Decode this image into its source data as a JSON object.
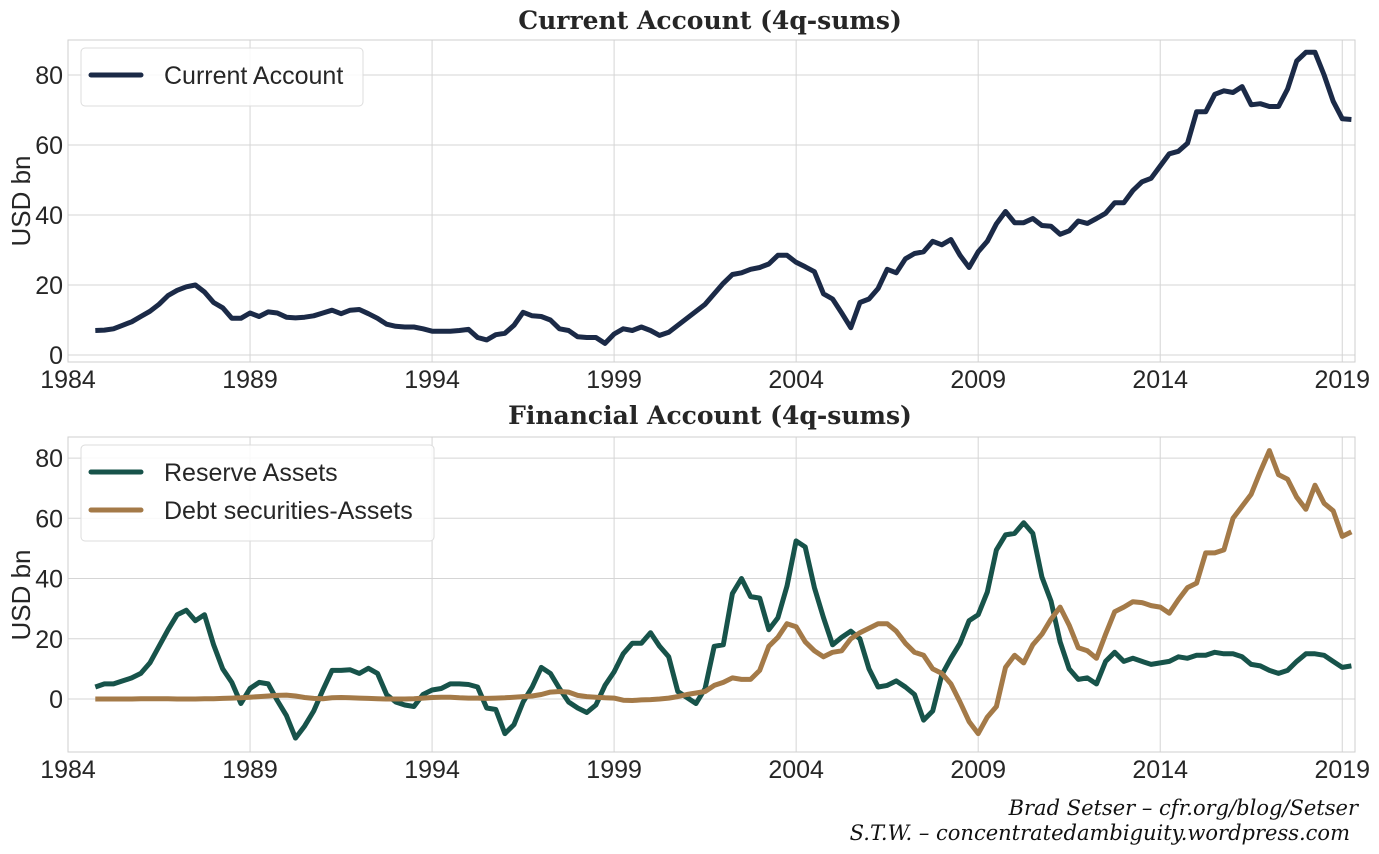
{
  "credits": [
    "Brad Setser – cfr.org/blog/Setser",
    "S.T.W. – concentratedambiguity.wordpress.com"
  ],
  "chart_data": [
    {
      "type": "line",
      "title": "Current Account (4q-sums)",
      "ylabel": "USD bn",
      "xlabel": "",
      "xlim": [
        1984,
        2019.35
      ],
      "ylim": [
        -2,
        90
      ],
      "xticks": [
        1984,
        1989,
        1994,
        1999,
        2004,
        2009,
        2014,
        2019
      ],
      "yticks": [
        0,
        20,
        40,
        60,
        80
      ],
      "grid": true,
      "legend": "top-left",
      "x": [
        1984.75,
        1985,
        1985.25,
        1985.5,
        1985.75,
        1986,
        1986.25,
        1986.5,
        1986.75,
        1987,
        1987.25,
        1987.5,
        1987.75,
        1988,
        1988.25,
        1988.5,
        1988.75,
        1989,
        1989.25,
        1989.5,
        1989.75,
        1990,
        1990.25,
        1990.5,
        1990.75,
        1991,
        1991.25,
        1991.5,
        1991.75,
        1992,
        1992.25,
        1992.5,
        1992.75,
        1993,
        1993.25,
        1993.5,
        1993.75,
        1994,
        1994.25,
        1994.5,
        1994.75,
        1995,
        1995.25,
        1995.5,
        1995.75,
        1996,
        1996.25,
        1996.5,
        1996.75,
        1997,
        1997.25,
        1997.5,
        1997.75,
        1998,
        1998.25,
        1998.5,
        1998.75,
        1999,
        1999.25,
        1999.5,
        1999.75,
        2000,
        2000.25,
        2000.5,
        2000.75,
        2001,
        2001.25,
        2001.5,
        2001.75,
        2002,
        2002.25,
        2002.5,
        2002.75,
        2003,
        2003.25,
        2003.5,
        2003.75,
        2004,
        2004.25,
        2004.5,
        2004.75,
        2005,
        2005.25,
        2005.5,
        2005.75,
        2006,
        2006.25,
        2006.5,
        2006.75,
        2007,
        2007.25,
        2007.5,
        2007.75,
        2008,
        2008.25,
        2008.5,
        2008.75,
        2009,
        2009.25,
        2009.5,
        2009.75,
        2010,
        2010.25,
        2010.5,
        2010.75,
        2011,
        2011.25,
        2011.5,
        2011.75,
        2012,
        2012.25,
        2012.5,
        2012.75,
        2013,
        2013.25,
        2013.5,
        2013.75,
        2014,
        2014.25,
        2014.5,
        2014.75,
        2015,
        2015.25,
        2015.5,
        2015.75,
        2016,
        2016.25,
        2016.5,
        2016.75,
        2017,
        2017.25,
        2017.5,
        2017.75,
        2018,
        2018.25,
        2018.5,
        2018.75,
        2019,
        2019.25
      ],
      "series": [
        {
          "name": "Current Account",
          "color": "#1b2a47",
          "values": [
            7,
            7.1,
            7.5,
            8.5,
            9.5,
            11,
            12.5,
            14.5,
            17,
            18.5,
            19.5,
            20,
            18,
            15,
            13.5,
            10.5,
            10.5,
            12,
            11,
            12.3,
            12,
            10.8,
            10.6,
            10.8,
            11.2,
            12,
            12.8,
            11.8,
            12.8,
            13,
            11.8,
            10.5,
            8.8,
            8.2,
            8,
            8,
            7.5,
            6.8,
            6.8,
            6.8,
            7,
            7.3,
            5,
            4.3,
            5.8,
            6.2,
            8.5,
            12.2,
            11.2,
            11,
            10,
            7.5,
            7,
            5.2,
            5,
            5,
            3.3,
            6,
            7.5,
            7,
            8,
            7,
            5.6,
            6.5,
            8.5,
            10.5,
            12.5,
            14.5,
            17.5,
            20.5,
            23,
            23.5,
            24.5,
            25,
            26,
            28.5,
            28.5,
            26.5,
            25.2,
            23.8,
            17.5,
            16,
            12,
            7.8,
            15,
            16,
            19,
            24.5,
            23.5,
            27.5,
            29,
            29.5,
            32.5,
            31.5,
            33,
            28.5,
            25,
            29.5,
            32.5,
            37.5,
            41,
            37.8,
            37.8,
            39,
            37,
            36.8,
            34.5,
            35.5,
            38.3,
            37.6,
            39,
            40.5,
            43.5,
            43.5,
            47,
            49.5,
            50.5,
            54,
            57.5,
            58.2,
            60.5,
            69.5,
            69.5,
            74.5,
            75.5,
            75,
            76.7,
            71.5,
            71.8,
            71,
            71,
            76,
            84,
            86.5,
            86.5,
            80,
            72.5,
            67.5,
            67.3
          ]
        }
      ]
    },
    {
      "type": "line",
      "title": "Financial Account (4q-sums)",
      "ylabel": "USD bn",
      "xlabel": "",
      "xlim": [
        1984,
        2019.35
      ],
      "ylim": [
        -17.6,
        87
      ],
      "xticks": [
        1984,
        1989,
        1994,
        1999,
        2004,
        2009,
        2014,
        2019
      ],
      "yticks": [
        0,
        20,
        40,
        60,
        80
      ],
      "grid": true,
      "legend": "top-left",
      "x": [
        1984.75,
        1985,
        1985.25,
        1985.5,
        1985.75,
        1986,
        1986.25,
        1986.5,
        1986.75,
        1987,
        1987.25,
        1987.5,
        1987.75,
        1988,
        1988.25,
        1988.5,
        1988.75,
        1989,
        1989.25,
        1989.5,
        1989.75,
        1990,
        1990.25,
        1990.5,
        1990.75,
        1991,
        1991.25,
        1991.5,
        1991.75,
        1992,
        1992.25,
        1992.5,
        1992.75,
        1993,
        1993.25,
        1993.5,
        1993.75,
        1994,
        1994.25,
        1994.5,
        1994.75,
        1995,
        1995.25,
        1995.5,
        1995.75,
        1996,
        1996.25,
        1996.5,
        1996.75,
        1997,
        1997.25,
        1997.5,
        1997.75,
        1998,
        1998.25,
        1998.5,
        1998.75,
        1999,
        1999.25,
        1999.5,
        1999.75,
        2000,
        2000.25,
        2000.5,
        2000.75,
        2001,
        2001.25,
        2001.5,
        2001.75,
        2002,
        2002.25,
        2002.5,
        2002.75,
        2003,
        2003.25,
        2003.5,
        2003.75,
        2004,
        2004.25,
        2004.5,
        2004.75,
        2005,
        2005.25,
        2005.5,
        2005.75,
        2006,
        2006.25,
        2006.5,
        2006.75,
        2007,
        2007.25,
        2007.5,
        2007.75,
        2008,
        2008.25,
        2008.5,
        2008.75,
        2009,
        2009.25,
        2009.5,
        2009.75,
        2010,
        2010.25,
        2010.5,
        2010.75,
        2011,
        2011.25,
        2011.5,
        2011.75,
        2012,
        2012.25,
        2012.5,
        2012.75,
        2013,
        2013.25,
        2013.5,
        2013.75,
        2014,
        2014.25,
        2014.5,
        2014.75,
        2015,
        2015.25,
        2015.5,
        2015.75,
        2016,
        2016.25,
        2016.5,
        2016.75,
        2017,
        2017.25,
        2017.5,
        2017.75,
        2018,
        2018.25,
        2018.5,
        2018.75,
        2019,
        2019.25
      ],
      "series": [
        {
          "name": "Reserve Assets",
          "color": "#17534a",
          "values": [
            4,
            5,
            5,
            6,
            7,
            8.5,
            12,
            17.5,
            23,
            28,
            29.5,
            26,
            28,
            18,
            10,
            5.5,
            -1.5,
            3.5,
            5.5,
            5,
            -0.5,
            -5.5,
            -13,
            -9,
            -4,
            3,
            9.5,
            9.5,
            9.7,
            8.5,
            10.2,
            8.5,
            1.5,
            -1,
            -2,
            -2.5,
            1.5,
            3,
            3.5,
            5,
            5,
            4.8,
            4,
            -3,
            -3.5,
            -11.5,
            -8.5,
            -1,
            4,
            10.5,
            8.5,
            3.5,
            -1,
            -3,
            -4.5,
            -2,
            4.5,
            9,
            15,
            18.5,
            18.5,
            22,
            17.5,
            14,
            2.5,
            0.5,
            -1.5,
            3.5,
            17.5,
            18,
            35,
            40,
            34,
            33.5,
            23,
            27,
            37.5,
            52.5,
            50.5,
            37,
            27,
            18,
            20.5,
            22.5,
            20,
            10,
            4,
            4.5,
            6,
            4,
            1.5,
            -7,
            -4,
            8,
            13.5,
            18.5,
            26,
            28,
            35.5,
            49.5,
            54.5,
            55,
            58.5,
            55,
            40.5,
            32.5,
            19,
            10,
            6.5,
            7,
            5,
            12.5,
            15.5,
            12.5,
            13.5,
            12.5,
            11.5,
            12,
            12.5,
            14,
            13.5,
            14.5,
            14.5,
            15.5,
            15,
            15,
            14,
            11.5,
            11,
            9.5,
            8.5,
            9.5,
            12.5,
            15,
            15,
            14.5,
            12.5,
            10.5,
            11
          ]
        },
        {
          "name": "Debt securities-Assets",
          "color": "#a47a48",
          "values": [
            0,
            0,
            0,
            0,
            0,
            0.1,
            0.1,
            0.1,
            0.1,
            0,
            0,
            0,
            0.1,
            0.1,
            0.2,
            0.3,
            0.4,
            0.6,
            0.8,
            1.0,
            1.2,
            1.3,
            1.0,
            0.5,
            0.2,
            0.1,
            0.4,
            0.5,
            0.4,
            0.3,
            0.2,
            0.1,
            0,
            0,
            0,
            0.1,
            0.3,
            0.5,
            0.6,
            0.6,
            0.4,
            0.3,
            0.3,
            0.2,
            0.3,
            0.4,
            0.6,
            0.8,
            1.0,
            1.5,
            2.3,
            2.5,
            2.3,
            1.2,
            0.8,
            0.6,
            0.4,
            0.3,
            -0.4,
            -0.5,
            -0.3,
            -0.2,
            0,
            0.3,
            0.8,
            1.5,
            2,
            2.5,
            4.5,
            5.5,
            7,
            6.5,
            6.5,
            9.5,
            17.5,
            20.5,
            25,
            24,
            19,
            16,
            14,
            15.5,
            16,
            20,
            22,
            23.5,
            25,
            25,
            22.5,
            18.5,
            15.5,
            14.5,
            10,
            8.5,
            5,
            -1,
            -7.5,
            -11.5,
            -6,
            -2.5,
            10.5,
            14.5,
            12,
            18,
            21.5,
            26.5,
            30.5,
            24.5,
            17,
            16,
            13.5,
            21.5,
            29,
            30.5,
            32.3,
            32,
            31,
            30.5,
            28.5,
            33,
            37,
            38.5,
            48.5,
            48.5,
            49.5,
            60,
            64,
            68,
            75.5,
            82.5,
            74.5,
            73,
            67,
            63,
            71,
            65,
            62.5,
            54,
            55.5
          ]
        }
      ]
    }
  ]
}
